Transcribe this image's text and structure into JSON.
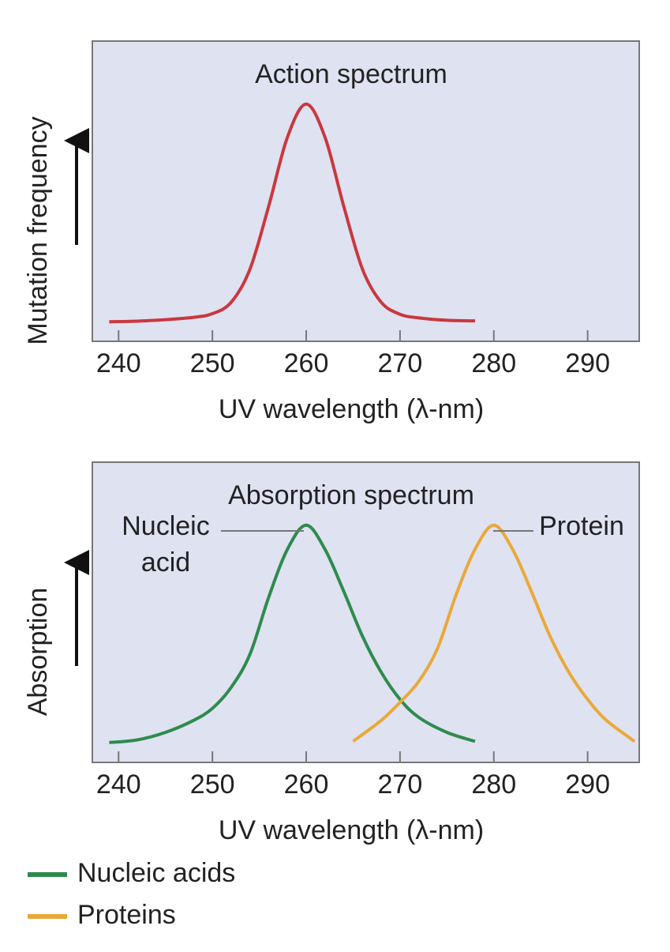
{
  "chart_data": [
    {
      "type": "line",
      "title": "Action spectrum",
      "x_label": "UV wavelength (λ-nm)",
      "y_label": "Mutation frequency",
      "x": [
        239,
        242,
        245,
        248,
        250,
        252,
        254,
        256,
        258,
        260,
        262,
        264,
        266,
        268,
        270,
        272,
        275,
        278
      ],
      "values": [
        6.5,
        6.7,
        7.2,
        8,
        9.2,
        13,
        24,
        45,
        68,
        79,
        68,
        45,
        24,
        13,
        9,
        7.8,
        7,
        6.8
      ],
      "color": "#c9383f",
      "xlim": [
        237.2,
        295.5
      ],
      "ylim": [
        0,
        100
      ],
      "xticks": [
        240,
        250,
        260,
        270,
        280,
        290
      ]
    },
    {
      "type": "line",
      "title": "Absorption spectrum",
      "x_label": "UV wavelength (λ-nm)",
      "y_label": "Absorption",
      "series": [
        {
          "name": "Nucleic acids",
          "color": "#2e8b4e",
          "x": [
            239,
            242,
            245,
            248,
            250,
            252,
            254,
            256,
            258,
            260,
            262,
            264,
            266,
            268,
            270,
            272,
            275,
            278
          ],
          "values": [
            6.6,
            7.5,
            10,
            14,
            18,
            25,
            36,
            55,
            71,
            79,
            71,
            57,
            42,
            30,
            21,
            15,
            10,
            7
          ]
        },
        {
          "name": "Proteins",
          "color": "#e9a93a",
          "x": [
            265,
            268,
            270,
            272,
            274,
            276,
            278,
            280,
            282,
            284,
            286,
            288,
            290,
            292,
            295
          ],
          "values": [
            7,
            14,
            20,
            27,
            38,
            56,
            71,
            79,
            71,
            57,
            42,
            30,
            21,
            14,
            7
          ]
        }
      ],
      "annotations": [
        {
          "lines": [
            "Nucleic",
            "acid"
          ]
        },
        {
          "lines": [
            "Protein"
          ]
        }
      ],
      "xlim": [
        237.2,
        295.5
      ],
      "ylim": [
        0,
        100
      ],
      "xticks": [
        240,
        250,
        260,
        270,
        280,
        290
      ],
      "legend": "bottom-left"
    }
  ]
}
